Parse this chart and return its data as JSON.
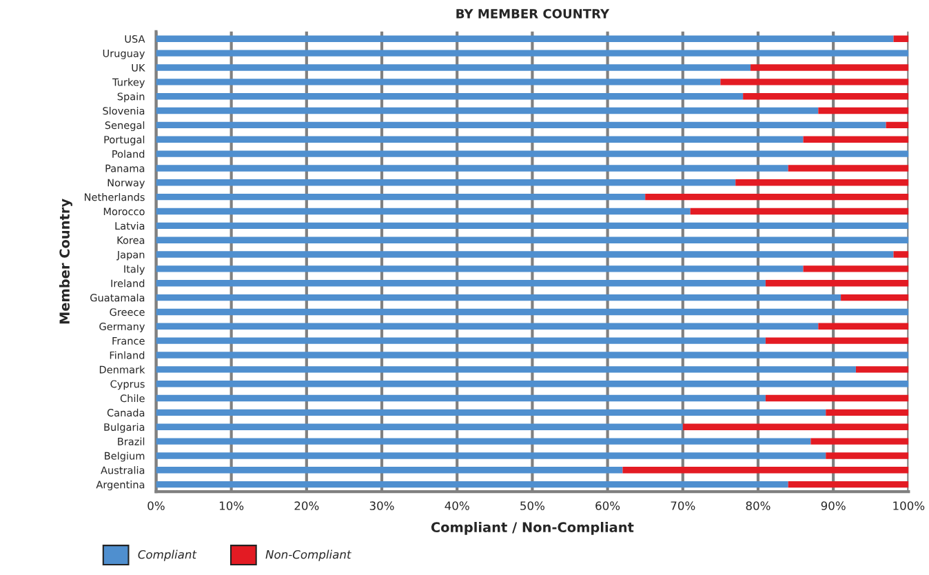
{
  "chart_data": {
    "type": "bar",
    "orientation": "horizontal",
    "stacked": true,
    "title": "BY MEMBER COUNTRY",
    "xlabel": "Compliant / Non-Compliant",
    "ylabel": "Member Country",
    "categories": [
      "USA",
      "Uruguay",
      "UK",
      "Turkey",
      "Spain",
      "Slovenia",
      "Senegal",
      "Portugal",
      "Poland",
      "Panama",
      "Norway",
      "Netherlands",
      "Morocco",
      "Latvia",
      "Korea",
      "Japan",
      "Italy",
      "Ireland",
      "Guatamala",
      "Greece",
      "Germany",
      "France",
      "Finland",
      "Denmark",
      "Cyprus",
      "Chile",
      "Canada",
      "Bulgaria",
      "Brazil",
      "Belgium",
      "Australia",
      "Argentina"
    ],
    "series": [
      {
        "name": "Compliant",
        "color": "#4f8fcf",
        "values": [
          98,
          100,
          79,
          75,
          78,
          88,
          97,
          86,
          100,
          84,
          77,
          65,
          71,
          100,
          100,
          98,
          86,
          81,
          91,
          100,
          88,
          81,
          100,
          93,
          100,
          81,
          89,
          70,
          87,
          89,
          62,
          84
        ]
      },
      {
        "name": "Non-Compliant",
        "color": "#e31b23",
        "values": [
          2,
          0,
          21,
          25,
          22,
          12,
          3,
          14,
          0,
          16,
          23,
          35,
          29,
          0,
          0,
          2,
          14,
          19,
          9,
          0,
          12,
          19,
          0,
          7,
          0,
          19,
          11,
          30,
          13,
          11,
          38,
          16
        ]
      }
    ],
    "xlim": [
      0,
      100
    ],
    "xticks": [
      {
        "value": 0,
        "label": "0%"
      },
      {
        "value": 10,
        "label": "10%"
      },
      {
        "value": 20,
        "label": "20%"
      },
      {
        "value": 30,
        "label": "30%"
      },
      {
        "value": 40,
        "label": "40%"
      },
      {
        "value": 50,
        "label": "50%"
      },
      {
        "value": 60,
        "label": "60%"
      },
      {
        "value": 70,
        "label": "70%"
      },
      {
        "value": 80,
        "label": "80%"
      },
      {
        "value": 90,
        "label": "90%"
      },
      {
        "value": 100,
        "label": "100%"
      }
    ],
    "grid": "x",
    "legend": "bottom left"
  }
}
